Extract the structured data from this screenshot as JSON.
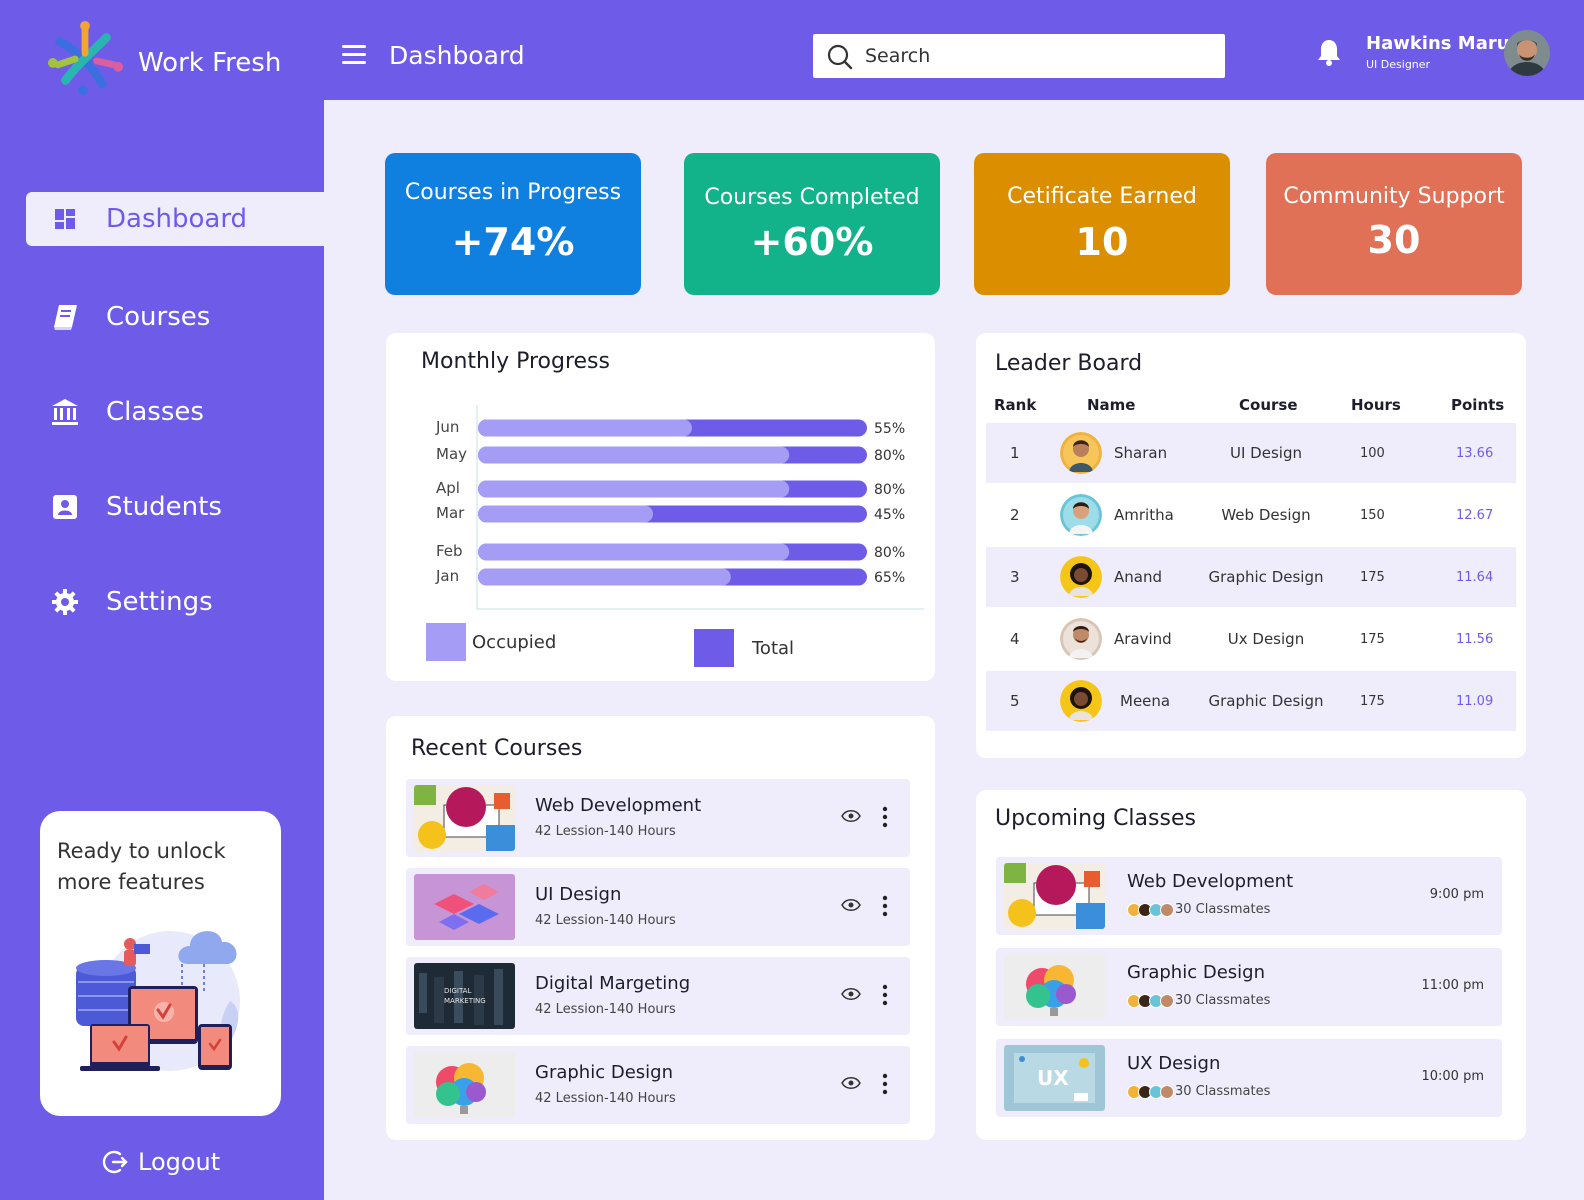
{
  "brand": {
    "name": "Work Fresh"
  },
  "header": {
    "title": "Dashboard",
    "search_placeholder": "Search",
    "user_name": "Hawkins Maru",
    "user_role": "UI Designer"
  },
  "sidebar": {
    "items": [
      {
        "label": "Dashboard",
        "icon": "grid-icon",
        "active": true
      },
      {
        "label": "Courses",
        "icon": "book-icon",
        "active": false
      },
      {
        "label": "Classes",
        "icon": "bank-icon",
        "active": false
      },
      {
        "label": "Students",
        "icon": "contact-icon",
        "active": false
      },
      {
        "label": "Settings",
        "icon": "gear-icon",
        "active": false
      }
    ],
    "promo_text": "Ready to unlock more features",
    "logout_label": "Logout"
  },
  "stats": [
    {
      "label": "Courses in Progress",
      "value": "+74%",
      "color": "#0f80e0"
    },
    {
      "label": "Courses Completed",
      "value": "+60%",
      "color": "#12b38a"
    },
    {
      "label": "Cetificate Earned",
      "value": "10",
      "color": "#db8e00"
    },
    {
      "label": "Community Support",
      "value": "30",
      "color": "#e07156"
    }
  ],
  "monthly_progress": {
    "title": "Monthly Progress",
    "legend": {
      "occupied": "Occupied",
      "total": "Total"
    },
    "colors": {
      "occupied": "#a59cf5",
      "total": "#6e5ce8"
    }
  },
  "chart_data": {
    "type": "bar",
    "orientation": "horizontal",
    "categories": [
      "Jun",
      "May",
      "Apl",
      "Mar",
      "Feb",
      "Jan"
    ],
    "values": [
      55,
      80,
      80,
      45,
      80,
      65
    ],
    "value_labels": [
      "55%",
      "80%",
      "80%",
      "45%",
      "80%",
      "65%"
    ],
    "series": [
      {
        "name": "Occupied",
        "values": [
          55,
          80,
          80,
          45,
          80,
          65
        ]
      },
      {
        "name": "Total",
        "values": [
          100,
          100,
          100,
          100,
          100,
          100
        ]
      }
    ],
    "xlim": [
      0,
      100
    ]
  },
  "leaderboard": {
    "title": "Leader Board",
    "columns": [
      "Rank",
      "Name",
      "Course",
      "Hours",
      "Points"
    ],
    "rows": [
      {
        "rank": "1",
        "name": "Sharan",
        "course": "UI Design",
        "hours": "100",
        "points": "13.66",
        "avatar_color": "#f2b13a"
      },
      {
        "rank": "2",
        "name": "Amritha",
        "course": "Web Design",
        "hours": "150",
        "points": "12.67",
        "avatar_color": "#6ac4d8"
      },
      {
        "rank": "3",
        "name": "Anand",
        "course": "Graphic Design",
        "hours": "175",
        "points": "11.64",
        "avatar_color": "#f5c518"
      },
      {
        "rank": "4",
        "name": "Aravind",
        "course": "Ux Design",
        "hours": "175",
        "points": "11.56",
        "avatar_color": "#d9c5b5"
      },
      {
        "rank": "5",
        "name": "Meena",
        "course": "Graphic Design",
        "hours": "175",
        "points": "11.09",
        "avatar_color": "#f5c518"
      }
    ]
  },
  "recent_courses": {
    "title": "Recent Courses",
    "items": [
      {
        "title": "Web Development",
        "sub": "42 Lession-140 Hours",
        "thumb": "web"
      },
      {
        "title": "UI Design",
        "sub": "42 Lession-140 Hours",
        "thumb": "ui"
      },
      {
        "title": "Digital Margeting",
        "sub": "42 Lession-140 Hours",
        "thumb": "dm"
      },
      {
        "title": "Graphic Design",
        "sub": "42 Lession-140 Hours",
        "thumb": "gd"
      }
    ]
  },
  "upcoming_classes": {
    "title": "Upcoming Classes",
    "items": [
      {
        "title": "Web Development",
        "mates": "30 Classmates",
        "time": "9:00 pm",
        "thumb": "web"
      },
      {
        "title": "Graphic Design",
        "mates": "30 Classmates",
        "time": "11:00 pm",
        "thumb": "gd"
      },
      {
        "title": "UX Design",
        "mates": "30 Classmates",
        "time": "10:00 pm",
        "thumb": "ux"
      }
    ]
  }
}
